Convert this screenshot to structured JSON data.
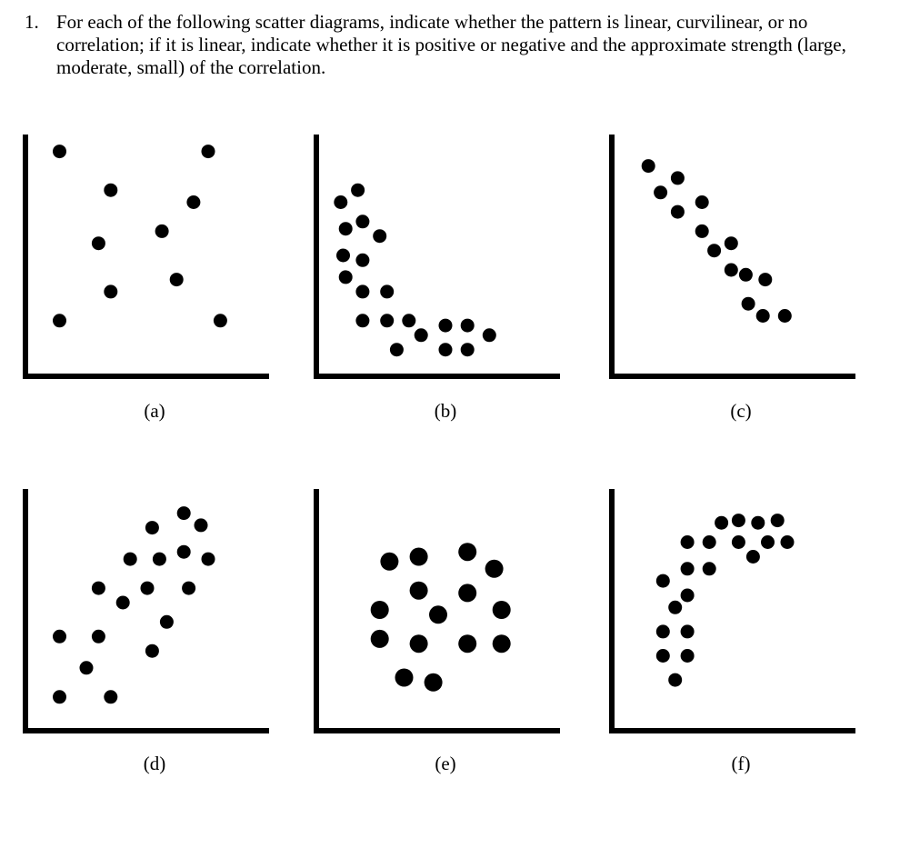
{
  "question": {
    "number": "1.",
    "text": "For each of the following scatter diagrams, indicate whether the pattern is linear, curvilinear, or no correlation; if it is linear, indicate whether it is positive or negative and the approximate strength (large, moderate, small) of the correlation."
  },
  "chart_data": [
    {
      "type": "scatter",
      "label": "(a)",
      "points": [
        [
          1.4,
          9.3
        ],
        [
          7.5,
          9.3
        ],
        [
          3.5,
          7.7
        ],
        [
          6.9,
          7.2
        ],
        [
          5.6,
          6.0
        ],
        [
          3.0,
          5.5
        ],
        [
          6.2,
          4.0
        ],
        [
          3.5,
          3.5
        ],
        [
          1.4,
          2.3
        ],
        [
          8.0,
          2.3
        ]
      ]
    },
    {
      "type": "scatter",
      "label": "(b)",
      "points": [
        [
          1.0,
          7.2
        ],
        [
          1.7,
          7.7
        ],
        [
          1.2,
          6.1
        ],
        [
          1.9,
          6.4
        ],
        [
          2.6,
          5.8
        ],
        [
          1.1,
          5.0
        ],
        [
          1.9,
          4.8
        ],
        [
          1.2,
          4.1
        ],
        [
          1.9,
          3.5
        ],
        [
          2.9,
          3.5
        ],
        [
          1.9,
          2.3
        ],
        [
          2.9,
          2.3
        ],
        [
          3.8,
          2.3
        ],
        [
          5.3,
          2.1
        ],
        [
          6.2,
          2.1
        ],
        [
          4.3,
          1.7
        ],
        [
          7.1,
          1.7
        ],
        [
          3.3,
          1.1
        ],
        [
          5.3,
          1.1
        ],
        [
          6.2,
          1.1
        ]
      ]
    },
    {
      "type": "scatter",
      "label": "(c)",
      "points": [
        [
          1.5,
          8.7
        ],
        [
          2.0,
          7.6
        ],
        [
          2.7,
          8.2
        ],
        [
          2.7,
          6.8
        ],
        [
          3.7,
          7.2
        ],
        [
          3.7,
          6.0
        ],
        [
          4.2,
          5.2
        ],
        [
          4.9,
          5.5
        ],
        [
          4.9,
          4.4
        ],
        [
          5.5,
          4.2
        ],
        [
          6.3,
          4.0
        ],
        [
          5.6,
          3.0
        ],
        [
          6.2,
          2.5
        ],
        [
          7.1,
          2.5
        ]
      ]
    },
    {
      "type": "scatter",
      "label": "(d)",
      "points": [
        [
          1.4,
          1.4
        ],
        [
          3.5,
          1.4
        ],
        [
          2.5,
          2.6
        ],
        [
          1.4,
          3.9
        ],
        [
          3.0,
          3.9
        ],
        [
          5.2,
          3.3
        ],
        [
          4.0,
          5.3
        ],
        [
          5.8,
          4.5
        ],
        [
          3.0,
          5.9
        ],
        [
          5.0,
          5.9
        ],
        [
          6.7,
          5.9
        ],
        [
          4.3,
          7.1
        ],
        [
          5.5,
          7.1
        ],
        [
          6.5,
          7.4
        ],
        [
          7.5,
          7.1
        ],
        [
          5.2,
          8.4
        ],
        [
          6.5,
          9.0
        ],
        [
          7.2,
          8.5
        ]
      ]
    },
    {
      "type": "scatter",
      "label": "(e)",
      "points": [
        [
          3.0,
          7.0
        ],
        [
          4.2,
          7.2
        ],
        [
          6.2,
          7.4
        ],
        [
          7.3,
          6.7
        ],
        [
          4.2,
          5.8
        ],
        [
          6.2,
          5.7
        ],
        [
          2.6,
          5.0
        ],
        [
          5.0,
          4.8
        ],
        [
          7.6,
          5.0
        ],
        [
          2.6,
          3.8
        ],
        [
          4.2,
          3.6
        ],
        [
          6.2,
          3.6
        ],
        [
          7.6,
          3.6
        ],
        [
          3.6,
          2.2
        ],
        [
          4.8,
          2.0
        ]
      ]
    },
    {
      "type": "scatter",
      "label": "(f)",
      "points": [
        [
          2.1,
          6.2
        ],
        [
          2.6,
          5.1
        ],
        [
          2.1,
          4.1
        ],
        [
          2.1,
          3.1
        ],
        [
          2.6,
          2.1
        ],
        [
          3.1,
          3.1
        ],
        [
          3.1,
          4.1
        ],
        [
          3.1,
          5.6
        ],
        [
          3.1,
          6.7
        ],
        [
          3.1,
          7.8
        ],
        [
          4.0,
          7.8
        ],
        [
          4.0,
          6.7
        ],
        [
          4.5,
          8.6
        ],
        [
          5.2,
          8.7
        ],
        [
          5.2,
          7.8
        ],
        [
          5.8,
          7.2
        ],
        [
          6.0,
          8.6
        ],
        [
          6.4,
          7.8
        ],
        [
          6.8,
          8.7
        ],
        [
          7.2,
          7.8
        ]
      ]
    }
  ]
}
